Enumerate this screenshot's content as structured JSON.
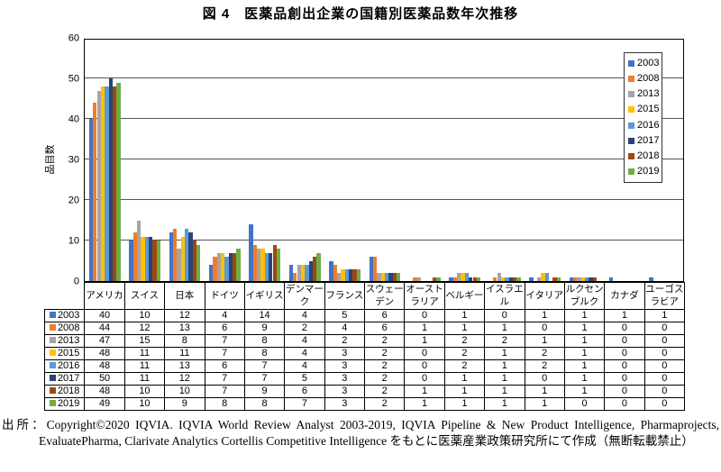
{
  "page": {
    "source": "出所：Copyright©2020 IQVIA. IQVIA World Review Analyst 2003-2019, IQVIA Pipeline & New Product Intelligence, Pharmaprojects, EvaluatePharma, Clarivate Analytics Cortellis Competitive Intelligence をもとに医薬産業政策研究所にて作成（無断転載禁止）"
  },
  "chart_data": {
    "type": "bar",
    "title": "図 4　医薬品創出企業の国籍別医薬品数年次推移",
    "ylabel": "品目数",
    "xlabel": "",
    "ylim": [
      0,
      60
    ],
    "yticks": [
      0,
      10,
      20,
      30,
      40,
      50,
      60
    ],
    "grid": true,
    "legend_position": "top-right",
    "categories": [
      "アメリカ",
      "スイス",
      "日本",
      "ドイツ",
      "イギリス",
      "デンマーク",
      "フランス",
      "スウェーデン",
      "オーストラリア",
      "ベルギー",
      "イスラエル",
      "イタリア",
      "ルクセンブルク",
      "カナダ",
      "ユーゴスラビア"
    ],
    "series": [
      {
        "name": "2003",
        "color": "#4472C4",
        "values": [
          40,
          10,
          12,
          4,
          14,
          4,
          5,
          6,
          0,
          1,
          0,
          1,
          1,
          1,
          1
        ]
      },
      {
        "name": "2008",
        "color": "#ED7D31",
        "values": [
          44,
          12,
          13,
          6,
          9,
          2,
          4,
          6,
          1,
          1,
          1,
          0,
          1,
          0,
          0
        ]
      },
      {
        "name": "2013",
        "color": "#A5A5A5",
        "values": [
          47,
          15,
          8,
          7,
          8,
          4,
          2,
          2,
          1,
          2,
          2,
          1,
          1,
          0,
          0
        ]
      },
      {
        "name": "2015",
        "color": "#FFC000",
        "values": [
          48,
          11,
          11,
          7,
          8,
          4,
          3,
          2,
          0,
          2,
          1,
          2,
          1,
          0,
          0
        ]
      },
      {
        "name": "2016",
        "color": "#5B9BD5",
        "values": [
          48,
          11,
          13,
          6,
          7,
          4,
          3,
          2,
          0,
          2,
          1,
          2,
          1,
          0,
          0
        ]
      },
      {
        "name": "2017",
        "color": "#264478",
        "values": [
          50,
          11,
          12,
          7,
          7,
          5,
          3,
          2,
          0,
          1,
          1,
          0,
          1,
          0,
          0
        ]
      },
      {
        "name": "2018",
        "color": "#9E480E",
        "values": [
          48,
          10,
          10,
          7,
          9,
          6,
          3,
          2,
          1,
          1,
          1,
          1,
          1,
          0,
          0
        ]
      },
      {
        "name": "2019",
        "color": "#70AD47",
        "values": [
          49,
          10,
          9,
          8,
          8,
          7,
          3,
          2,
          1,
          1,
          1,
          1,
          0,
          0,
          0
        ]
      }
    ]
  }
}
